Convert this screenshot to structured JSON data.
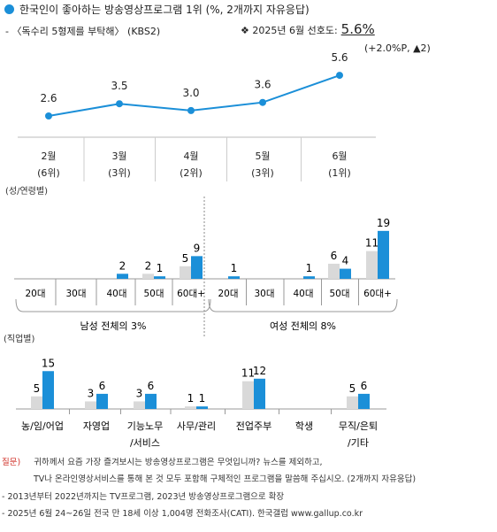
{
  "header": {
    "title": "한국인이 좋아하는 방송영상프로그램 1위 (%, 2개까지 자유응답)",
    "subtitle": "- 〈독수리 5형제를 부탁해〉 (KBS2)",
    "pref_label": "❖  2025년 6월 선호도:",
    "pref_value": "5.6%",
    "pref_change": "(+2.0%P, ▲2)"
  },
  "chart_data": [
    {
      "type": "line",
      "title": "",
      "categories": [
        "2월",
        "3월",
        "4월",
        "5월",
        "6월"
      ],
      "rank_labels": [
        "(6위)",
        "(3위)",
        "(2위)",
        "(3위)",
        "(1위)"
      ],
      "series": [
        {
          "values": [
            2.6,
            3.5,
            3.0,
            3.6,
            5.6
          ]
        }
      ],
      "value_labels": [
        "2.6",
        "3.5",
        "3.0",
        "3.6",
        "5.6"
      ],
      "colors": {
        "line": "#1b8fd8",
        "grid": "#bbbbbb"
      }
    },
    {
      "type": "bar",
      "title": "(성/연령별)",
      "groups": [
        {
          "label": "남성 전체의 3%",
          "categories": [
            "20대",
            "30대",
            "40대",
            "50대",
            "60대+"
          ],
          "series": [
            {
              "values": [
                0,
                0,
                0,
                2,
                5
              ]
            },
            {
              "values": [
                0,
                0,
                2,
                1,
                9
              ]
            }
          ],
          "value_labels": [
            [
              "",
              ""
            ],
            [
              "",
              ""
            ],
            [
              "",
              "2"
            ],
            [
              "2",
              "1"
            ],
            [
              "5",
              "9"
            ]
          ]
        },
        {
          "label": "여성 전체의 8%",
          "categories": [
            "20대",
            "30대",
            "40대",
            "50대",
            "60대+"
          ],
          "series": [
            {
              "values": [
                0,
                0,
                0,
                6,
                11
              ]
            },
            {
              "values": [
                1,
                0,
                1,
                4,
                19
              ]
            }
          ],
          "value_labels": [
            [
              "",
              "1"
            ],
            [
              "",
              ""
            ],
            [
              "",
              "1"
            ],
            [
              "6",
              "4"
            ],
            [
              "11",
              "19"
            ]
          ]
        }
      ],
      "colors": {
        "prev": "#d9d9d9",
        "curr": "#1b8fd8"
      }
    },
    {
      "type": "bar",
      "title": "(직업별)",
      "categories": [
        "농/임/어업",
        "자영업",
        "기능노무\n/서비스",
        "사무/관리",
        "전업주부",
        "학생",
        "무직/은퇴\n/기타"
      ],
      "series": [
        {
          "values": [
            5,
            3,
            3,
            1,
            11,
            0,
            5
          ]
        },
        {
          "values": [
            15,
            6,
            6,
            1,
            12,
            0,
            6
          ]
        }
      ],
      "value_labels": [
        [
          "5",
          "15"
        ],
        [
          "3",
          "6"
        ],
        [
          "3",
          "6"
        ],
        [
          "1",
          "1"
        ],
        [
          "11",
          "12"
        ],
        [
          "",
          ""
        ],
        [
          "5",
          "6"
        ]
      ],
      "colors": {
        "prev": "#d9d9d9",
        "curr": "#1b8fd8"
      }
    }
  ],
  "footer": {
    "q_label": "질문)",
    "question_line1": "귀하께서 요즘 가장 즐겨보시는 방송영상프로그램은 무엇입니까? 뉴스를 제외하고,",
    "question_line2": "TV나 온라인영상서비스를 통해 본 것 모두 포함해 구체적인 프로그램을 말씀해 주십시오. (2개까지 자유응답)",
    "note1": "- 2013년부터 2022년까지는 TV프로그램, 2023년 방송영상프로그램으로 확장",
    "note2": "- 2025년 6월 24~26일 전국 만 18세 이상 1,004명 전화조사(CATI). 한국갤럽 www.gallup.co.kr"
  }
}
